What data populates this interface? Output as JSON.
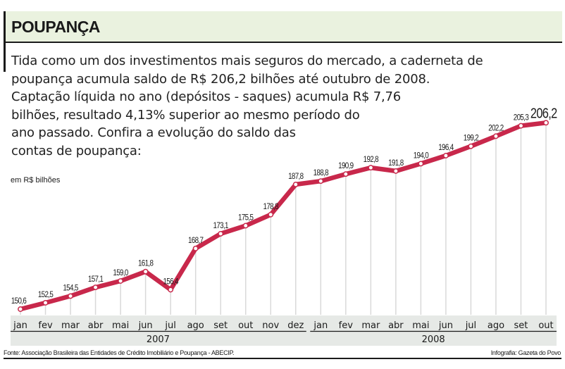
{
  "header": {
    "title": "POUPANÇA"
  },
  "intro": {
    "lines": [
      "Tida como um dos investimentos mais seguros do mercado, a caderneta de",
      "poupança acumula saldo de R$ 206,2 bilhões até outubro de 2008.",
      "Captação líquida no ano (depósitos - saques) acumula R$ 7,76",
      "bilhões, resultado 4,13% superior ao mesmo período do",
      "ano passado. Confira a evolução do saldo das",
      "contas de poupança:"
    ]
  },
  "footer": {
    "source": "Fonte: Associação Brasileira das Entidades de Crédito Imobiliário e Poupança - ABECIP.",
    "credit": "Infografia: Gazeta do Povo"
  },
  "colors": {
    "line": "#c8284b",
    "header_bg": "#eaf2df",
    "axis_band": "#e6e9e6",
    "gridline": "#d9d9d9"
  },
  "chart_data": {
    "type": "line",
    "title": "POUPANÇA",
    "ylabel": "em R$ bilhões",
    "xlabel": "",
    "ylim": [
      145,
      208
    ],
    "grid": "vertical",
    "legend": "none",
    "years": [
      {
        "label": "2007",
        "months": 12
      },
      {
        "label": "2008",
        "months": 10
      }
    ],
    "categories": [
      "jan",
      "fev",
      "mar",
      "abr",
      "mai",
      "jun",
      "jul",
      "ago",
      "set",
      "out",
      "nov",
      "dez",
      "jan",
      "fev",
      "mar",
      "abr",
      "mai",
      "jun",
      "jul",
      "ago",
      "set",
      "out"
    ],
    "values": [
      150.6,
      152.5,
      154.5,
      157.1,
      159.0,
      161.8,
      156.4,
      168.7,
      173.1,
      175.5,
      178.8,
      187.8,
      188.8,
      190.9,
      192.8,
      191.8,
      194.0,
      196.4,
      199.2,
      202.2,
      205.3,
      206.2
    ],
    "labels": [
      "150,6",
      "152,5",
      "154,5",
      "157,1",
      "159,0",
      "161,8",
      "156,4",
      "168,7",
      "173,1",
      "175,5",
      "178,8",
      "187,8",
      "188,8",
      "190,9",
      "192,8",
      "191,8",
      "194,0",
      "196,4",
      "199,2",
      "202,2",
      "205,3",
      "206,2"
    ]
  }
}
